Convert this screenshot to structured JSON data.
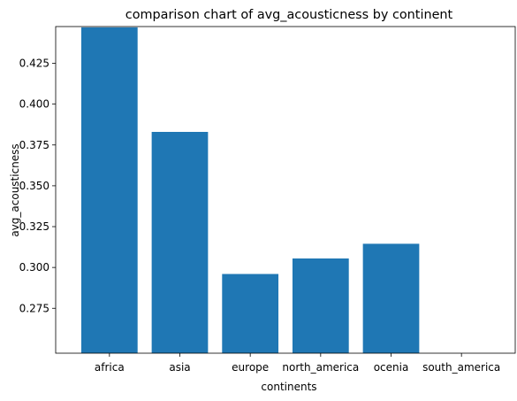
{
  "chart_data": {
    "type": "bar",
    "title": "comparison chart of avg_acousticness by continent",
    "xlabel": "continents",
    "ylabel": "avg_acousticness",
    "categories": [
      "africa",
      "asia",
      "europe",
      "north_america",
      "ocenia",
      "south_america"
    ],
    "values": [
      0.447,
      0.383,
      0.296,
      0.3055,
      0.3145,
      0.247
    ],
    "ylim": [
      0.2475,
      0.4475
    ],
    "yticks": [
      0.275,
      0.3,
      0.325,
      0.35,
      0.375,
      0.4,
      0.425
    ],
    "ytick_labels": [
      "0.275",
      "0.300",
      "0.325",
      "0.350",
      "0.375",
      "0.400",
      "0.425"
    ],
    "grid": false,
    "legend": "none",
    "bar_color": "#1f77b4"
  }
}
